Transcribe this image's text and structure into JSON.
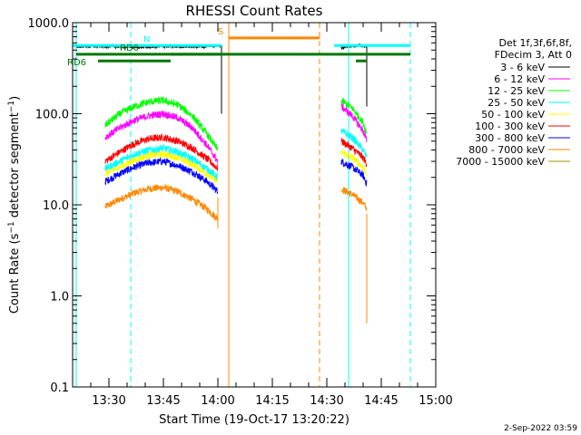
{
  "chart_data": {
    "type": "line",
    "title": "RHESSI Count Rates",
    "xlabel": "Start Time (19-Oct-17 13:20:22)",
    "ylabel": "Count Rate (s⁻¹ detector segment⁻¹)",
    "ylabel_parts": {
      "a": "Count Rate (s",
      "b": "−1",
      "c": " detector segment",
      "d": "−1",
      "e": ")"
    },
    "yscale": "log",
    "ylim": [
      0.1,
      1000
    ],
    "xlim": [
      "13:20",
      "15:00"
    ],
    "x_ticks": [
      "13:30",
      "13:45",
      "14:00",
      "14:15",
      "14:30",
      "14:45",
      "15:00"
    ],
    "y_ticks": [
      "0.1",
      "1.0",
      "10.0",
      "100.0",
      "1000.0"
    ],
    "legend_header": [
      "Det 1f,3f,6f,8f,",
      "FDecim 3, Att 0"
    ],
    "legend_placement": "right",
    "series": [
      {
        "name": "3 - 6 keV",
        "color": "#000000",
        "segments": [
          {
            "x": [
              "13:21",
              "13:30",
              "13:38",
              "13:46",
              "13:54",
              "14:00",
              "14:01"
            ],
            "y": [
              550,
              550,
              540,
              550,
              545,
              560,
              560
            ]
          },
          {
            "x": [
              "14:34",
              "14:37",
              "14:40",
              "14:41"
            ],
            "y": [
              530,
              560,
              555,
              550
            ]
          }
        ]
      },
      {
        "name": "6 - 12 keV",
        "color": "#ff00ff",
        "segments": [
          {
            "x": [
              "13:29",
              "13:33",
              "13:37",
              "13:41",
              "13:45",
              "13:49",
              "13:53",
              "13:57",
              "14:00"
            ],
            "y": [
              55,
              70,
              85,
              95,
              100,
              90,
              70,
              45,
              30
            ]
          },
          {
            "x": [
              "14:34",
              "14:37",
              "14:40",
              "14:41"
            ],
            "y": [
              120,
              95,
              65,
              50
            ]
          }
        ]
      },
      {
        "name": "12 - 25 keV",
        "color": "#00ff00",
        "segments": [
          {
            "x": [
              "13:29",
              "13:33",
              "13:37",
              "13:41",
              "13:45",
              "13:49",
              "13:53",
              "13:57",
              "14:00"
            ],
            "y": [
              75,
              100,
              120,
              135,
              140,
              125,
              95,
              60,
              40
            ]
          },
          {
            "x": [
              "14:34",
              "14:37",
              "14:40",
              "14:41"
            ],
            "y": [
              140,
              115,
              80,
              60
            ]
          }
        ]
      },
      {
        "name": "25 - 50 keV",
        "color": "#00ffff",
        "segments": [
          {
            "x": [
              "13:29",
              "13:33",
              "13:37",
              "13:41",
              "13:45",
              "13:49",
              "13:53",
              "13:57",
              "14:00"
            ],
            "y": [
              25,
              30,
              36,
              40,
              42,
              38,
              32,
              25,
              20
            ]
          },
          {
            "x": [
              "14:34",
              "14:37",
              "14:40",
              "14:41"
            ],
            "y": [
              65,
              55,
              40,
              33
            ]
          }
        ]
      },
      {
        "name": "50 - 100 keV",
        "color": "#ffff00",
        "segments": [
          {
            "x": [
              "13:29",
              "13:33",
              "13:37",
              "13:41",
              "13:45",
              "13:49",
              "13:53",
              "13:57",
              "14:00"
            ],
            "y": [
              22,
              26,
              31,
              35,
              36,
              33,
              28,
              22,
              18
            ]
          },
          {
            "x": [
              "14:34",
              "14:37",
              "14:40",
              "14:41"
            ],
            "y": [
              38,
              33,
              26,
              22
            ]
          }
        ]
      },
      {
        "name": "100 - 300 keV",
        "color": "#ff0000",
        "segments": [
          {
            "x": [
              "13:29",
              "13:33",
              "13:37",
              "13:41",
              "13:45",
              "13:49",
              "13:53",
              "13:57",
              "14:00"
            ],
            "y": [
              30,
              38,
              47,
              53,
              55,
              50,
              42,
              32,
              25
            ]
          },
          {
            "x": [
              "14:34",
              "14:37",
              "14:40",
              "14:41"
            ],
            "y": [
              50,
              42,
              33,
              28
            ]
          }
        ]
      },
      {
        "name": "300 - 800 keV",
        "color": "#0000ff",
        "segments": [
          {
            "x": [
              "13:29",
              "13:33",
              "13:37",
              "13:41",
              "13:45",
              "13:49",
              "13:53",
              "13:57",
              "14:00"
            ],
            "y": [
              18,
              22,
              26,
              29,
              30,
              27,
              23,
              18,
              14
            ]
          },
          {
            "x": [
              "14:34",
              "14:37",
              "14:40",
              "14:41"
            ],
            "y": [
              30,
              26,
              21,
              17
            ]
          }
        ]
      },
      {
        "name": "800 - 7000 keV",
        "color": "#ff8800",
        "segments": [
          {
            "x": [
              "13:29",
              "13:33",
              "13:37",
              "13:41",
              "13:45",
              "13:49",
              "13:53",
              "13:57",
              "14:00"
            ],
            "y": [
              9.5,
              11.5,
              13.5,
              15,
              15.5,
              14,
              11.5,
              9,
              7
            ]
          },
          {
            "x": [
              "14:34",
              "14:37",
              "14:40",
              "14:41"
            ],
            "y": [
              15,
              13,
              10.5,
              9
            ]
          }
        ]
      },
      {
        "name": "7000 - 15000 keV",
        "color": "#999900",
        "segments": []
      }
    ],
    "annotations": [
      {
        "label": "N",
        "color": "#00ffff",
        "x_start": "13:20",
        "x_end": "14:01",
        "y": 560
      },
      {
        "label": "N",
        "color": "#00ffff",
        "x_start": "14:32",
        "x_end": "14:53",
        "y": 560
      },
      {
        "label": "RD0",
        "color": "#007700",
        "x_start": "13:21",
        "x_end": "14:01",
        "y": 450
      },
      {
        "label": "RD0",
        "color": "#007700",
        "x_start": "13:47",
        "x_end": "14:53",
        "y": 450
      },
      {
        "label": "RD6",
        "color": "#007700",
        "x_start": "13:27",
        "x_end": "13:47",
        "y": 380
      },
      {
        "label": "RD6",
        "color": "#007700",
        "x_start": "14:38",
        "x_end": "14:41",
        "y": 380
      },
      {
        "label": "S",
        "color": "#ff8800",
        "x_start": "14:03",
        "x_end": "14:28",
        "y": 680
      }
    ],
    "vlines": [
      {
        "x": "13:21",
        "color": "#00ffff",
        "style": "solid"
      },
      {
        "x": "13:36",
        "color": "#00ffff",
        "style": "dashed"
      },
      {
        "x": "14:03",
        "color": "#ff8800",
        "style": "solid"
      },
      {
        "x": "14:28",
        "color": "#ff8800",
        "style": "dashed"
      },
      {
        "x": "14:36",
        "color": "#00ffff",
        "style": "solid"
      },
      {
        "x": "14:53",
        "color": "#00ffff",
        "style": "dashed"
      }
    ],
    "grid": false,
    "footer": "2-Sep-2022 03:59"
  }
}
